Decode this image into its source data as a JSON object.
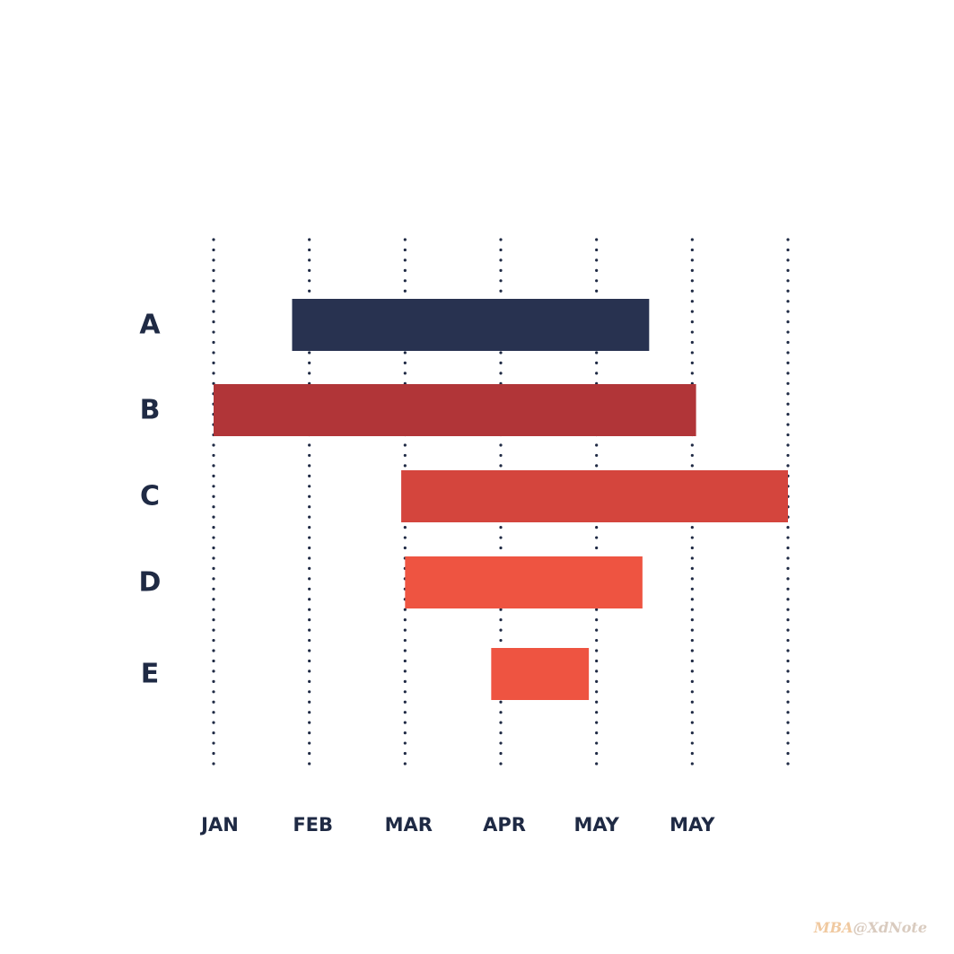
{
  "chart_data": {
    "type": "gantt",
    "title": "",
    "xlabel": "",
    "ylabel": "",
    "x_ticks": [
      "JAN",
      "FEB",
      "MAR",
      "APR",
      "MAY",
      "MAY"
    ],
    "xlim": [
      0,
      6
    ],
    "grid": true,
    "grid_style": "dotted-vertical",
    "tasks": [
      {
        "label": "A",
        "start": 0.82,
        "end": 4.55,
        "color": "#283250"
      },
      {
        "label": "B",
        "start": 0.0,
        "end": 5.04,
        "color": "#b13538"
      },
      {
        "label": "C",
        "start": 1.96,
        "end": 6.0,
        "color": "#d4453d"
      },
      {
        "label": "D",
        "start": 2.0,
        "end": 4.48,
        "color": "#ee5441"
      },
      {
        "label": "E",
        "start": 2.9,
        "end": 3.92,
        "color": "#ee5441"
      }
    ]
  },
  "watermark": {
    "prefix": "MBA",
    "suffix": "@XdNote"
  },
  "colors": {
    "text": "#1f2a44",
    "grid_dots": "#1f2a44"
  }
}
